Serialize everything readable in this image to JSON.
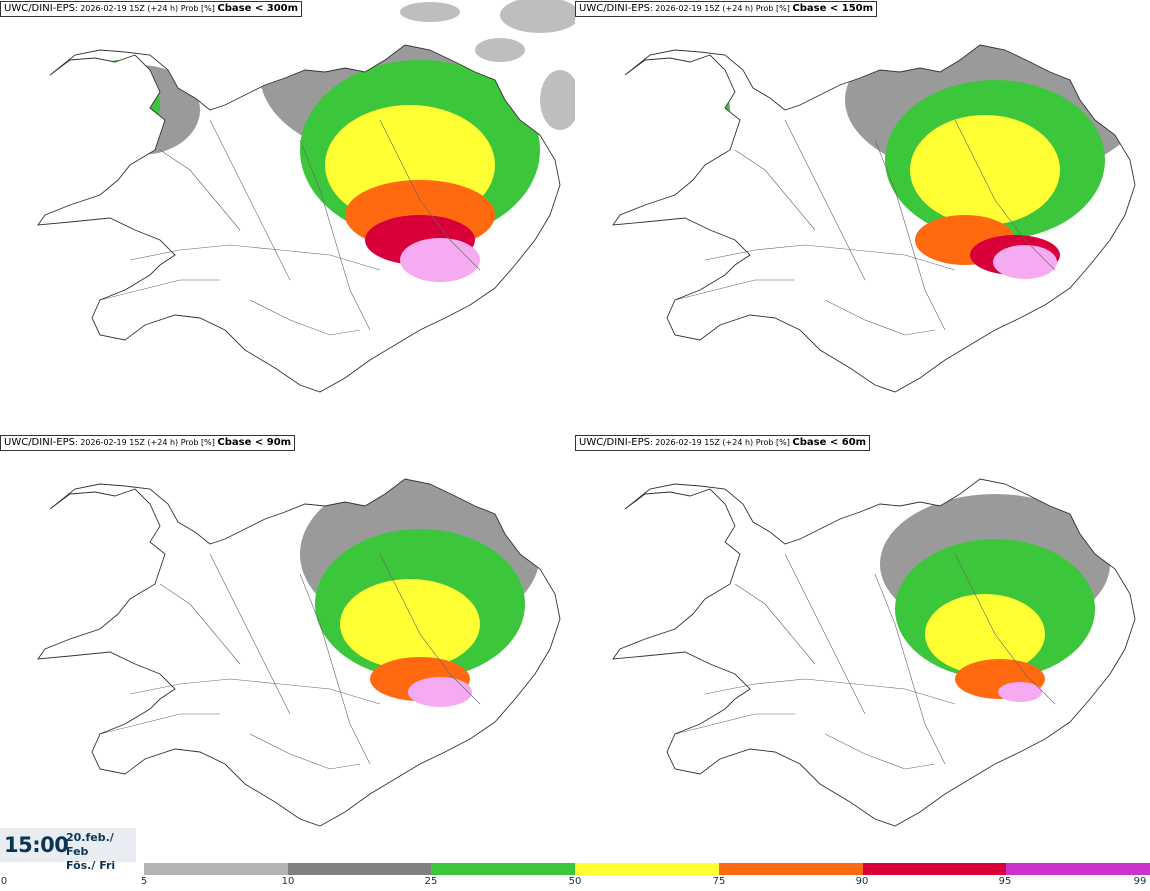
{
  "panels": [
    {
      "source": "UWC/DINI-EPS",
      "meta": ": 2026-02-19 15Z (+24 h) Prob [%] ",
      "param": "Cbase < 300m",
      "fields": [
        {
          "c": "#9a9a9a",
          "x": 420,
          "y": 75,
          "rx": 160,
          "ry": 90
        },
        {
          "c": "#9a9a9a",
          "x": 140,
          "y": 110,
          "rx": 60,
          "ry": 45
        },
        {
          "c": "#3cc63c",
          "x": 420,
          "y": 150,
          "rx": 120,
          "ry": 90
        },
        {
          "c": "#3cc63c",
          "x": 120,
          "y": 105,
          "rx": 40,
          "ry": 45
        },
        {
          "c": "#ffff33",
          "x": 410,
          "y": 165,
          "rx": 85,
          "ry": 60
        },
        {
          "c": "#ff6a10",
          "x": 420,
          "y": 215,
          "rx": 75,
          "ry": 35
        },
        {
          "c": "#d9003a",
          "x": 420,
          "y": 240,
          "rx": 55,
          "ry": 25
        },
        {
          "c": "#f5aaf2",
          "x": 440,
          "y": 260,
          "rx": 40,
          "ry": 22
        }
      ]
    },
    {
      "source": "UWC/DINI-EPS",
      "meta": ": 2026-02-19 15Z (+24 h) Prob [%] ",
      "param": "Cbase < 150m",
      "fields": [
        {
          "c": "#9a9a9a",
          "x": 420,
          "y": 100,
          "rx": 150,
          "ry": 80
        },
        {
          "c": "#3cc63c",
          "x": 420,
          "y": 160,
          "rx": 110,
          "ry": 80
        },
        {
          "c": "#3cc63c",
          "x": 120,
          "y": 110,
          "rx": 35,
          "ry": 40
        },
        {
          "c": "#ffff33",
          "x": 410,
          "y": 170,
          "rx": 75,
          "ry": 55
        },
        {
          "c": "#ff6a10",
          "x": 390,
          "y": 240,
          "rx": 50,
          "ry": 25
        },
        {
          "c": "#d9003a",
          "x": 440,
          "y": 255,
          "rx": 45,
          "ry": 20
        },
        {
          "c": "#f5aaf2",
          "x": 450,
          "y": 262,
          "rx": 32,
          "ry": 17
        }
      ]
    },
    {
      "source": "UWC/DINI-EPS",
      "meta": ": 2026-02-19 15Z (+24 h) Prob [%] ",
      "param": "Cbase < 90m",
      "fields": [
        {
          "c": "#9a9a9a",
          "x": 420,
          "y": 120,
          "rx": 120,
          "ry": 80
        },
        {
          "c": "#3cc63c",
          "x": 420,
          "y": 170,
          "rx": 105,
          "ry": 75
        },
        {
          "c": "#3cc63c",
          "x": 110,
          "y": 95,
          "rx": 30,
          "ry": 30
        },
        {
          "c": "#ffff33",
          "x": 410,
          "y": 190,
          "rx": 70,
          "ry": 45
        },
        {
          "c": "#ff6a10",
          "x": 420,
          "y": 245,
          "rx": 50,
          "ry": 22
        },
        {
          "c": "#f5aaf2",
          "x": 440,
          "y": 258,
          "rx": 32,
          "ry": 15
        }
      ]
    },
    {
      "source": "UWC/DINI-EPS",
      "meta": ": 2026-02-19 15Z (+24 h) Prob [%] ",
      "param": "Cbase < 60m",
      "fields": [
        {
          "c": "#9a9a9a",
          "x": 420,
          "y": 130,
          "rx": 115,
          "ry": 70
        },
        {
          "c": "#3cc63c",
          "x": 420,
          "y": 175,
          "rx": 100,
          "ry": 70
        },
        {
          "c": "#3cc63c",
          "x": 95,
          "y": 85,
          "rx": 20,
          "ry": 25
        },
        {
          "c": "#ffff33",
          "x": 410,
          "y": 200,
          "rx": 60,
          "ry": 40
        },
        {
          "c": "#ff6a10",
          "x": 425,
          "y": 245,
          "rx": 45,
          "ry": 20
        },
        {
          "c": "#f5aaf2",
          "x": 445,
          "y": 258,
          "rx": 22,
          "ry": 10
        }
      ]
    }
  ],
  "valid_time": {
    "time": "15:00",
    "date_line1": "20.feb./ Feb",
    "date_line2": "Fös./ Fri"
  },
  "legend": {
    "zero_label": "0",
    "bins": [
      {
        "label": "5",
        "color": "#b3b3b3"
      },
      {
        "label": "10",
        "color": "#808080"
      },
      {
        "label": "25",
        "color": "#3cc63c"
      },
      {
        "label": "50",
        "color": "#ffff33"
      },
      {
        "label": "75",
        "color": "#ff6a10"
      },
      {
        "label": "90",
        "color": "#d9003a"
      },
      {
        "label": "95",
        "color": "#cc33cc"
      },
      {
        "label": "99",
        "color": "#f5c8f2"
      }
    ]
  }
}
